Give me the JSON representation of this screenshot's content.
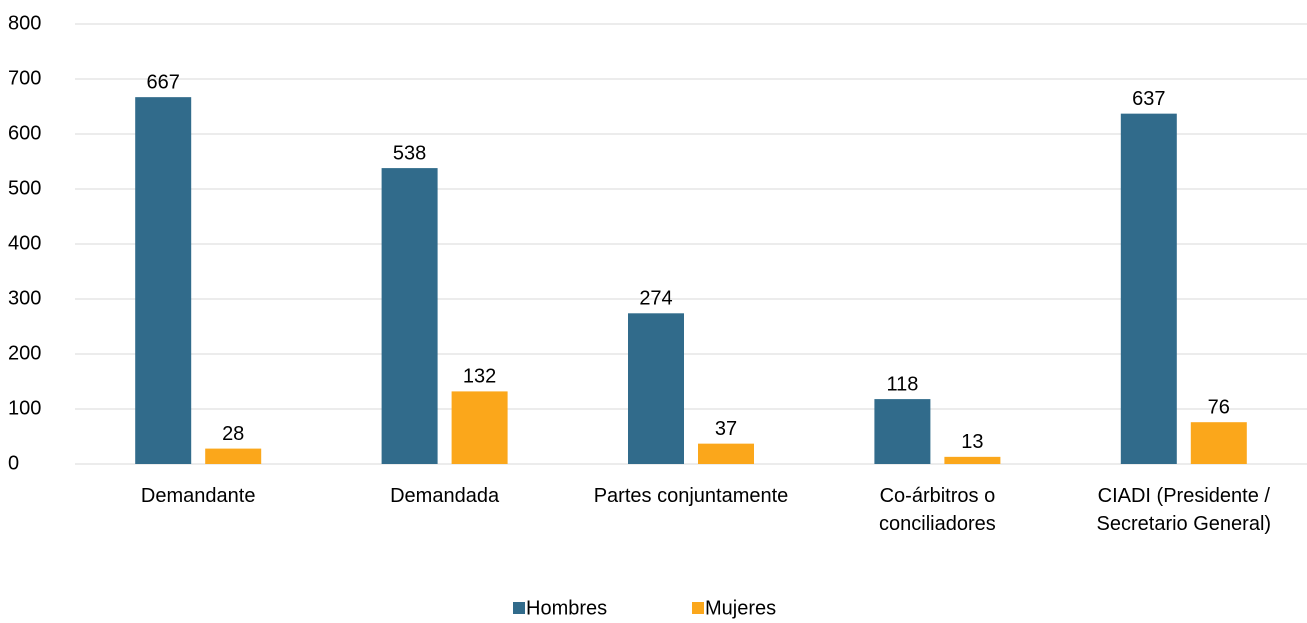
{
  "chart_data": {
    "type": "bar",
    "categories": [
      "Demandante",
      "Demandada",
      "Partes conjuntamente",
      "Co-árbitros o conciliadores",
      "CIADI (Presidente / Secretario General)"
    ],
    "series": [
      {
        "name": "Hombres",
        "color": "#316b8b",
        "values": [
          667,
          538,
          274,
          118,
          637
        ]
      },
      {
        "name": "Mujeres",
        "color": "#fba71b",
        "values": [
          28,
          132,
          37,
          13,
          76
        ]
      }
    ],
    "ylim": [
      0,
      800
    ],
    "yticks": [
      0,
      100,
      200,
      300,
      400,
      500,
      600,
      700,
      800
    ],
    "grid": true,
    "legend": "bottom"
  }
}
